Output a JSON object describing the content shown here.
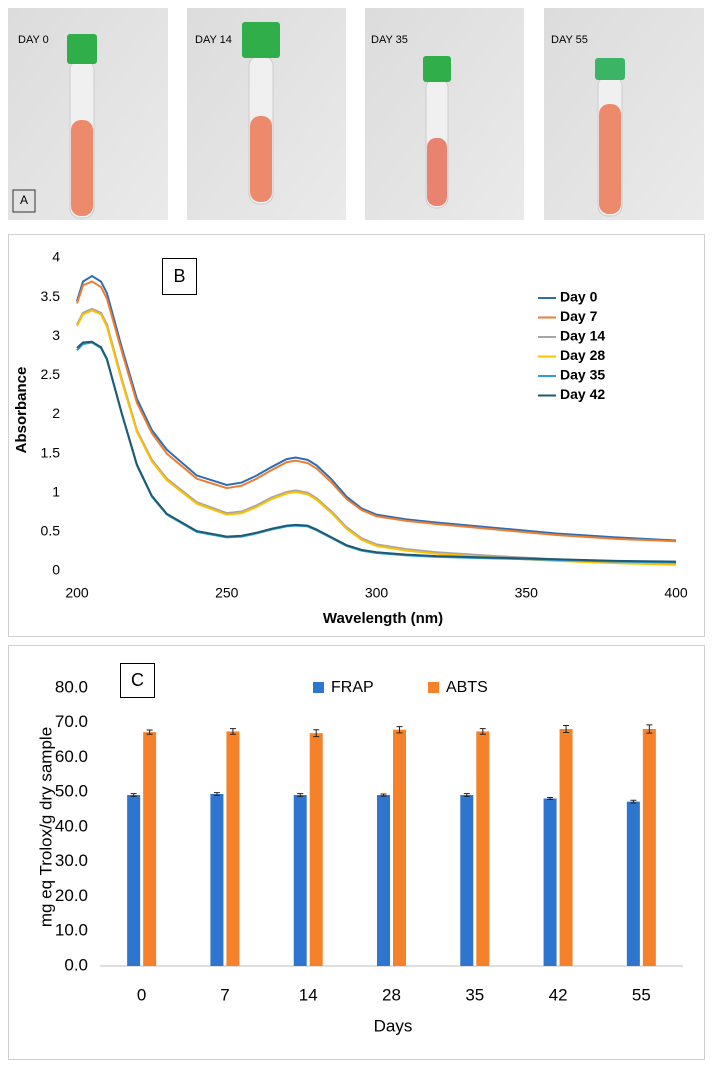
{
  "panel_a": {
    "label": "A",
    "photos": [
      "DAY 0",
      "DAY 14",
      "DAY 35",
      "DAY 55"
    ]
  },
  "chart_data": [
    {
      "type": "line",
      "panel_label": "B",
      "x_label": "Wavelength (nm)",
      "y_label": "Absorbance",
      "x": [
        200,
        202,
        205,
        208,
        210,
        215,
        220,
        225,
        230,
        240,
        250,
        255,
        260,
        265,
        270,
        273,
        277,
        280,
        285,
        290,
        295,
        300,
        310,
        320,
        340,
        360,
        380,
        400
      ],
      "series": [
        {
          "name": "Day 0",
          "color": "#2e6db4",
          "values": [
            3.45,
            3.7,
            3.77,
            3.7,
            3.55,
            2.85,
            2.2,
            1.8,
            1.55,
            1.22,
            1.1,
            1.13,
            1.22,
            1.33,
            1.43,
            1.45,
            1.42,
            1.35,
            1.17,
            0.95,
            0.8,
            0.72,
            0.66,
            0.62,
            0.55,
            0.48,
            0.43,
            0.39
          ]
        },
        {
          "name": "Day 7",
          "color": "#ed7d31",
          "values": [
            3.42,
            3.65,
            3.7,
            3.63,
            3.48,
            2.8,
            2.15,
            1.76,
            1.5,
            1.18,
            1.06,
            1.09,
            1.18,
            1.29,
            1.39,
            1.41,
            1.38,
            1.31,
            1.13,
            0.92,
            0.78,
            0.7,
            0.64,
            0.6,
            0.53,
            0.46,
            0.41,
            0.38
          ]
        },
        {
          "name": "Day 14",
          "color": "#a5a5a5",
          "values": [
            3.15,
            3.3,
            3.35,
            3.3,
            3.15,
            2.45,
            1.8,
            1.42,
            1.18,
            0.88,
            0.74,
            0.76,
            0.84,
            0.94,
            1.01,
            1.03,
            1.0,
            0.93,
            0.76,
            0.56,
            0.42,
            0.34,
            0.28,
            0.24,
            0.19,
            0.15,
            0.12,
            0.1
          ]
        },
        {
          "name": "Day 28",
          "color": "#ffc000",
          "values": [
            3.13,
            3.28,
            3.33,
            3.28,
            3.12,
            2.42,
            1.78,
            1.4,
            1.16,
            0.86,
            0.72,
            0.74,
            0.82,
            0.92,
            0.99,
            1.01,
            0.98,
            0.91,
            0.74,
            0.54,
            0.4,
            0.32,
            0.26,
            0.22,
            0.17,
            0.13,
            0.1,
            0.08
          ]
        },
        {
          "name": "Day 35",
          "color": "#2e9fd6",
          "values": [
            2.82,
            2.9,
            2.92,
            2.85,
            2.7,
            2.0,
            1.35,
            0.95,
            0.72,
            0.5,
            0.43,
            0.44,
            0.48,
            0.53,
            0.57,
            0.58,
            0.57,
            0.52,
            0.42,
            0.32,
            0.26,
            0.23,
            0.2,
            0.18,
            0.16,
            0.14,
            0.12,
            0.11
          ]
        },
        {
          "name": "Day 42",
          "color": "#1f5a73",
          "values": [
            2.85,
            2.92,
            2.93,
            2.86,
            2.71,
            2.01,
            1.36,
            0.96,
            0.73,
            0.51,
            0.44,
            0.45,
            0.49,
            0.54,
            0.58,
            0.59,
            0.58,
            0.53,
            0.43,
            0.33,
            0.27,
            0.24,
            0.21,
            0.19,
            0.17,
            0.15,
            0.13,
            0.12
          ]
        }
      ],
      "xlim": [
        200,
        400
      ],
      "xticks": [
        200,
        250,
        300,
        350,
        400
      ],
      "ylim": [
        0,
        4
      ],
      "yticks": [
        0,
        0.5,
        1,
        1.5,
        2,
        2.5,
        3,
        3.5,
        4
      ],
      "grid": false,
      "legend": "right"
    },
    {
      "type": "bar",
      "panel_label": "C",
      "x_label": "Days",
      "y_label": "mg eq Trolox/g dry sample",
      "categories": [
        "0",
        "7",
        "14",
        "28",
        "35",
        "42",
        "55"
      ],
      "series": [
        {
          "name": "FRAP",
          "color": "#2e75d0",
          "values": [
            49.2,
            49.5,
            49.2,
            49.2,
            49.2,
            48.2,
            47.3
          ],
          "errors": [
            0.4,
            0.4,
            0.4,
            0.3,
            0.4,
            0.3,
            0.4
          ]
        },
        {
          "name": "ABTS",
          "color": "#f5822a",
          "values": [
            67.3,
            67.5,
            67.0,
            68.0,
            67.5,
            68.2,
            68.2
          ],
          "errors": [
            0.6,
            0.8,
            1.0,
            0.9,
            0.8,
            1.0,
            1.2
          ]
        }
      ],
      "ylim": [
        0,
        80
      ],
      "yticks": [
        {
          "value": 0,
          "label": "0.0"
        },
        {
          "value": 10,
          "label": "10.0"
        },
        {
          "value": 20,
          "label": "20.0"
        },
        {
          "value": 30,
          "label": "30.0"
        },
        {
          "value": 40,
          "label": "40.0"
        },
        {
          "value": 50,
          "label": "50.0"
        },
        {
          "value": 60,
          "label": "60.0"
        },
        {
          "value": 70,
          "label": "70.0"
        },
        {
          "value": 80,
          "label": "80.0"
        }
      ],
      "grid": false,
      "legend": "top"
    }
  ]
}
